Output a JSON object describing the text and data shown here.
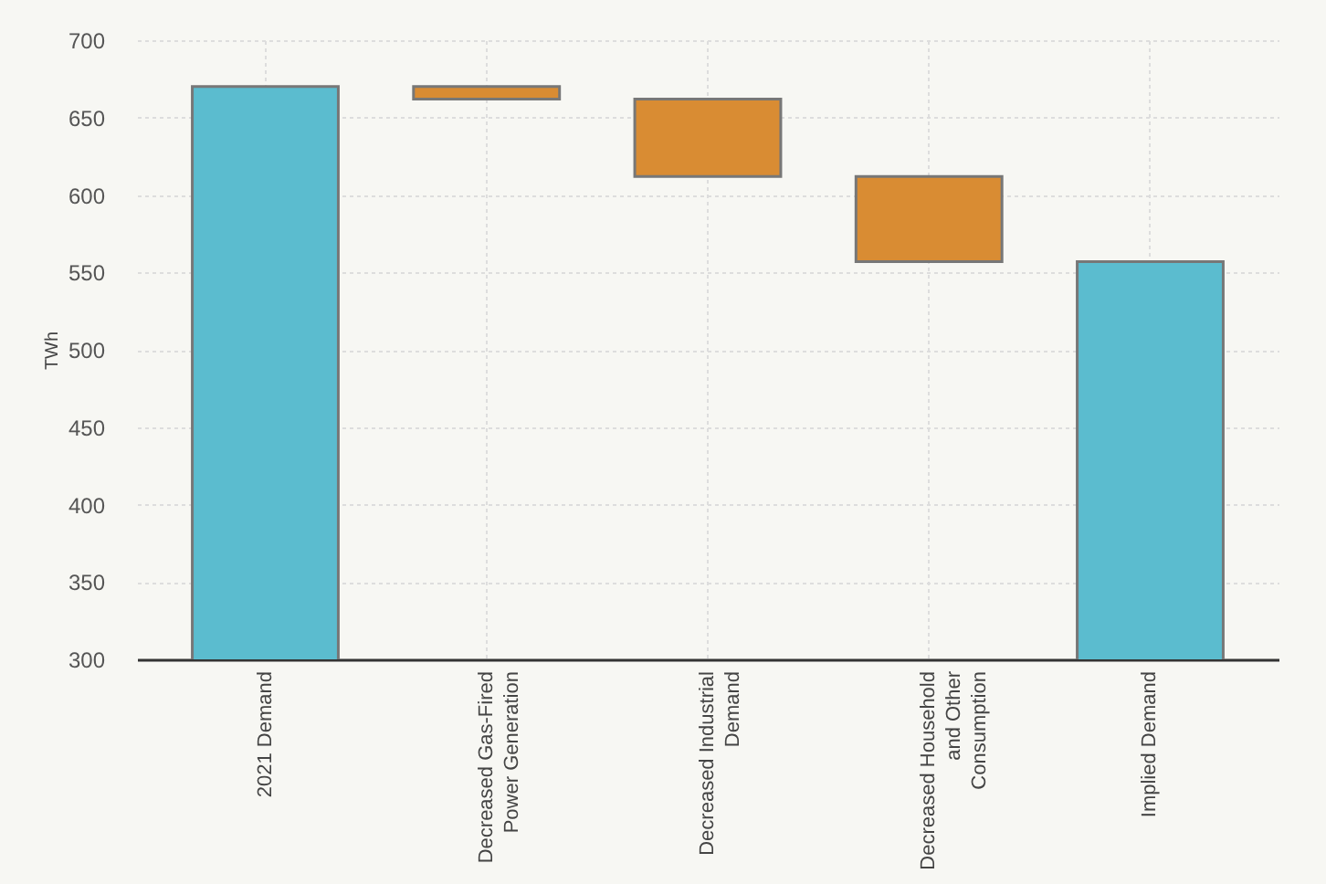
{
  "chart_data": {
    "type": "bar",
    "ylabel": "TWh",
    "categories": [
      "2021 Demand",
      "Decreased Gas-Fired Power Generation",
      "Decreased Industrial Demand",
      "Decreased Household and Other Consumption",
      "Implied Demand"
    ],
    "values": [
      670,
      8,
      50,
      55,
      557
    ],
    "base": [
      null,
      662,
      612,
      557,
      null
    ],
    "colors": [
      "#5bbccf",
      "#d98c33",
      "#d98c33",
      "#d98c33",
      "#5bbccf"
    ],
    "ylim": [
      300,
      700
    ],
    "yticks": [
      300,
      350,
      400,
      450,
      500,
      550,
      600,
      650,
      700
    ],
    "grid": true
  }
}
